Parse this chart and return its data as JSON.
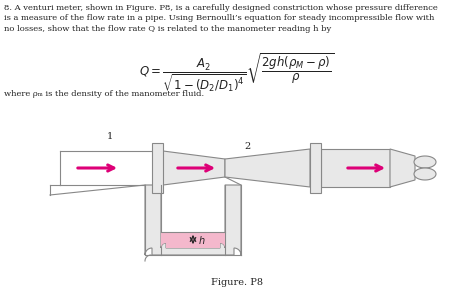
{
  "background_color": "#ffffff",
  "title_text": "8. A venturi meter, shown in Figure. P8, is a carefully designed constriction whose pressure difference\nis a measure of the flow rate in a pipe. Using Bernoulli’s equation for steady incompressible flow with\nno losses, show that the flow rate Q is related to the manometer reading h by",
  "where_text": "where ρₘ is the density of the manometer fluid.",
  "figure_label": "Figure. P8",
  "label1": "1",
  "label2": "2",
  "pipe_color": "#e8e8e8",
  "pipe_edge_color": "#888888",
  "arrow_color": "#dd0077",
  "fluid_color": "#f4b8cc",
  "text_color": "#222222"
}
